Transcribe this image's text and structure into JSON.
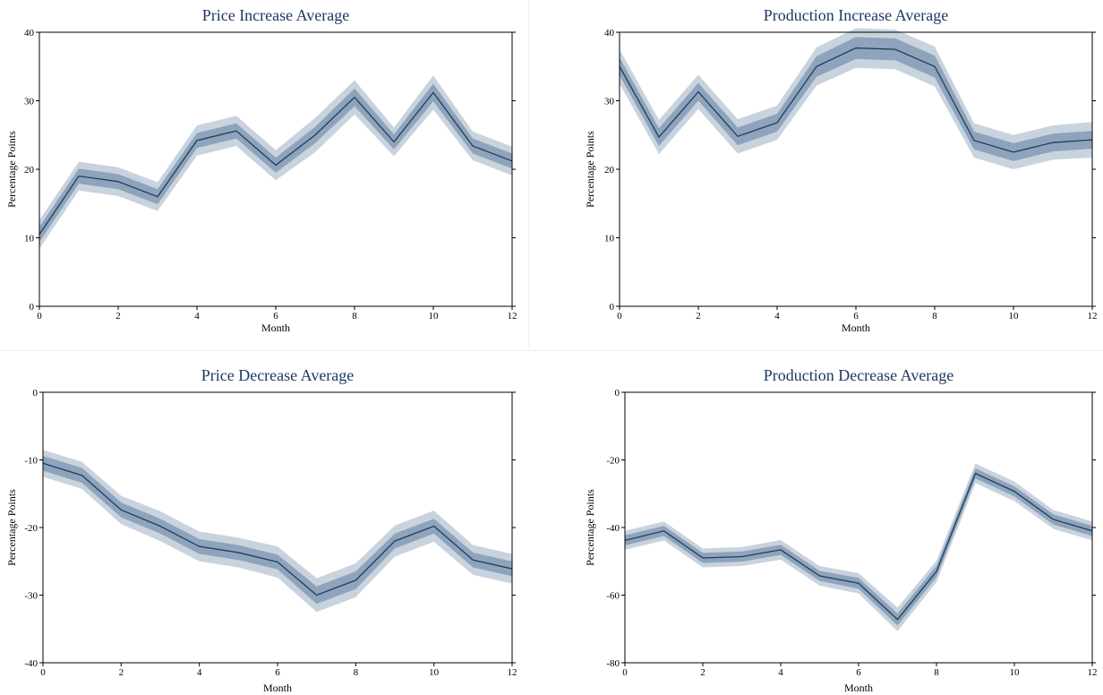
{
  "colors": {
    "line": "#1f3d5a",
    "band_inner": "#8ea4bc",
    "band_outer": "#c9d3de",
    "title": "#1f3864",
    "axis": "#000000"
  },
  "chart_data": [
    {
      "type": "line",
      "title": "Price Increase Average",
      "xlabel": "Month",
      "ylabel": "Percentage Points",
      "xlim": [
        0,
        12
      ],
      "ylim": [
        0,
        40
      ],
      "xticks": [
        0,
        2,
        4,
        6,
        8,
        10,
        12
      ],
      "yticks": [
        0,
        10,
        20,
        30,
        40
      ],
      "grid": false,
      "x": [
        0,
        1,
        2,
        3,
        4,
        5,
        6,
        7,
        8,
        9,
        10,
        11,
        12
      ],
      "series": [
        {
          "values": [
            10.5,
            19.0,
            18.2,
            16.0,
            24.2,
            25.6,
            20.6,
            25.0,
            30.5,
            24.0,
            31.2,
            23.4,
            21.2
          ],
          "ci68": [
            1.1,
            1.1,
            1.1,
            1.1,
            1.1,
            1.1,
            1.1,
            1.2,
            1.3,
            1.1,
            1.3,
            1.1,
            1.1
          ],
          "ci95": [
            2.1,
            2.1,
            2.1,
            2.1,
            2.2,
            2.2,
            2.2,
            2.5,
            2.5,
            2.1,
            2.5,
            2.1,
            2.1
          ]
        }
      ]
    },
    {
      "type": "line",
      "title": "Production Increase Average",
      "xlabel": "Month",
      "ylabel": "Percentage Points",
      "xlim": [
        0,
        12
      ],
      "ylim": [
        0,
        40
      ],
      "xticks": [
        0,
        2,
        4,
        6,
        8,
        10,
        12
      ],
      "yticks": [
        0,
        10,
        20,
        30,
        40
      ],
      "grid": false,
      "x": [
        0,
        1,
        2,
        3,
        4,
        5,
        6,
        7,
        8,
        9,
        10,
        11,
        12
      ],
      "series": [
        {
          "values": [
            35.0,
            24.7,
            31.3,
            24.8,
            26.8,
            35.0,
            37.7,
            37.5,
            35.0,
            24.2,
            22.5,
            23.9,
            24.3
          ],
          "ci68": [
            1.3,
            1.3,
            1.3,
            1.3,
            1.3,
            1.5,
            1.6,
            1.6,
            1.6,
            1.3,
            1.3,
            1.3,
            1.3
          ],
          "ci95": [
            2.5,
            2.5,
            2.5,
            2.5,
            2.5,
            2.8,
            2.9,
            2.9,
            2.9,
            2.5,
            2.5,
            2.5,
            2.6
          ]
        }
      ]
    },
    {
      "type": "line",
      "title": "Price Decrease Average",
      "xlabel": "Month",
      "ylabel": "Percentage Points",
      "xlim": [
        0,
        12
      ],
      "ylim": [
        -40,
        0
      ],
      "xticks": [
        0,
        2,
        4,
        6,
        8,
        10,
        12
      ],
      "yticks": [
        0,
        -10,
        -20,
        -30,
        -40
      ],
      "grid": false,
      "x": [
        0,
        1,
        2,
        3,
        4,
        5,
        6,
        7,
        8,
        9,
        10,
        11,
        12
      ],
      "series": [
        {
          "values": [
            -10.5,
            -12.3,
            -17.4,
            -19.8,
            -22.8,
            -23.7,
            -25.1,
            -30.0,
            -27.8,
            -22.0,
            -19.8,
            -24.8,
            -26.1
          ],
          "ci68": [
            1.1,
            1.1,
            1.1,
            1.1,
            1.1,
            1.1,
            1.1,
            1.3,
            1.3,
            1.1,
            1.1,
            1.1,
            1.1
          ],
          "ci95": [
            2.0,
            2.0,
            2.1,
            2.2,
            2.2,
            2.2,
            2.3,
            2.5,
            2.5,
            2.3,
            2.3,
            2.2,
            2.2
          ]
        }
      ]
    },
    {
      "type": "line",
      "title": "Production Decrease Average",
      "xlabel": "Month",
      "ylabel": "Percentage Points",
      "xlim": [
        0,
        12
      ],
      "ylim": [
        -80,
        0
      ],
      "xticks": [
        0,
        2,
        4,
        6,
        8,
        10,
        12
      ],
      "yticks": [
        0,
        -20,
        -40,
        -60,
        -80
      ],
      "grid": false,
      "x": [
        0,
        1,
        2,
        3,
        4,
        5,
        6,
        7,
        8,
        9,
        10,
        11,
        12
      ],
      "series": [
        {
          "values": [
            -43.8,
            -41.0,
            -49.0,
            -48.6,
            -46.6,
            -54.3,
            -56.5,
            -67.2,
            -53.0,
            -24.0,
            -29.3,
            -37.6,
            -41.0
          ],
          "ci68": [
            1.5,
            1.5,
            1.5,
            1.5,
            1.5,
            1.5,
            1.6,
            1.8,
            1.7,
            1.5,
            1.5,
            1.5,
            1.5
          ],
          "ci95": [
            2.8,
            2.8,
            2.8,
            2.8,
            2.9,
            2.9,
            3.0,
            3.5,
            3.2,
            2.9,
            2.9,
            2.8,
            2.8
          ]
        }
      ]
    }
  ]
}
